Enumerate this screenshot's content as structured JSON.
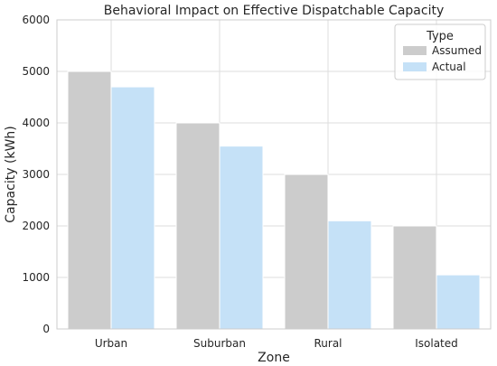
{
  "chart_data": {
    "type": "bar",
    "title": "Behavioral Impact on Effective Dispatchable Capacity",
    "xlabel": "Zone",
    "ylabel": "Capacity (kWh)",
    "categories": [
      "Urban",
      "Suburban",
      "Rural",
      "Isolated"
    ],
    "series": [
      {
        "name": "Assumed",
        "values": [
          5000,
          4000,
          3000,
          2000
        ],
        "color": "#cccccc"
      },
      {
        "name": "Actual",
        "values": [
          4700,
          3550,
          2100,
          1050
        ],
        "color": "#c5e1f7"
      }
    ],
    "ylim": [
      0,
      6000
    ],
    "yticks": [
      0,
      1000,
      2000,
      3000,
      4000,
      5000,
      6000
    ],
    "grid": true,
    "legend": {
      "title": "Type",
      "placement": "top-right"
    }
  }
}
